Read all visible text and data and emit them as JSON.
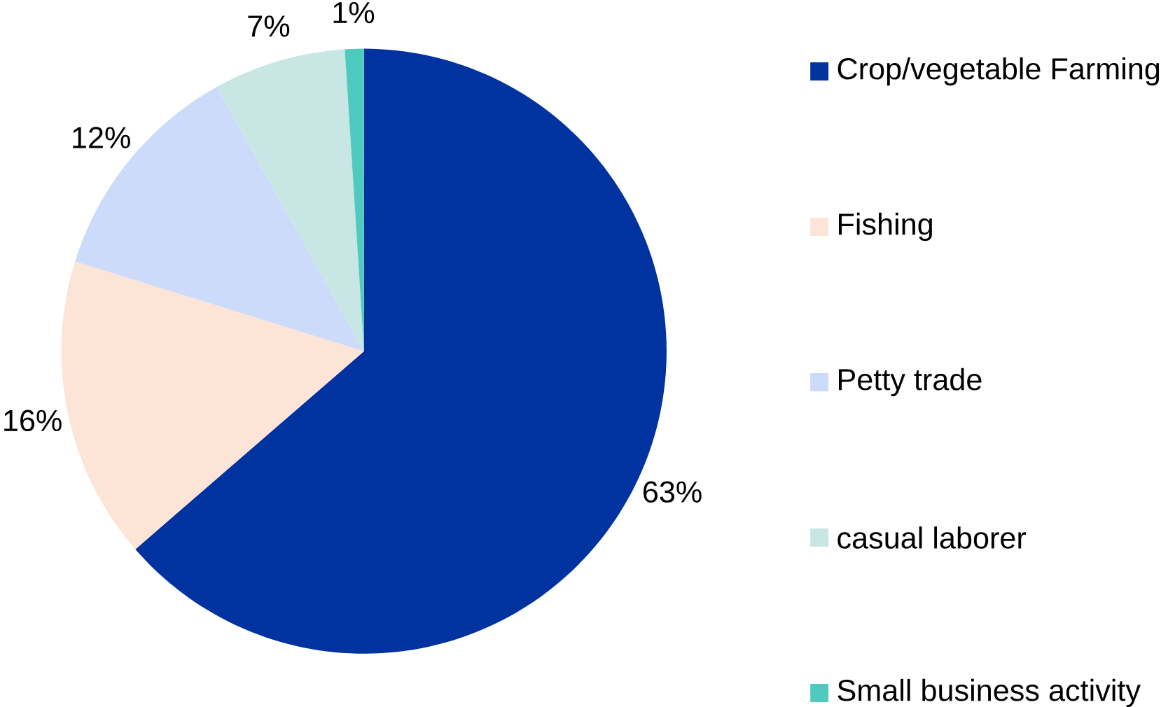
{
  "chart_data": {
    "type": "pie",
    "categories": [
      "Crop/vegetable Farming",
      "Fishing",
      "Petty trade",
      "casual laborer",
      "Small business activity"
    ],
    "values": [
      63,
      16,
      12,
      7,
      1
    ],
    "value_labels": [
      "63%",
      "16%",
      "12%",
      "7%",
      "1%"
    ],
    "colors": [
      "#0033a0",
      "#fce4d6",
      "#cbdbf9",
      "#c8e6e4",
      "#4fcabe"
    ],
    "legend": "right"
  }
}
